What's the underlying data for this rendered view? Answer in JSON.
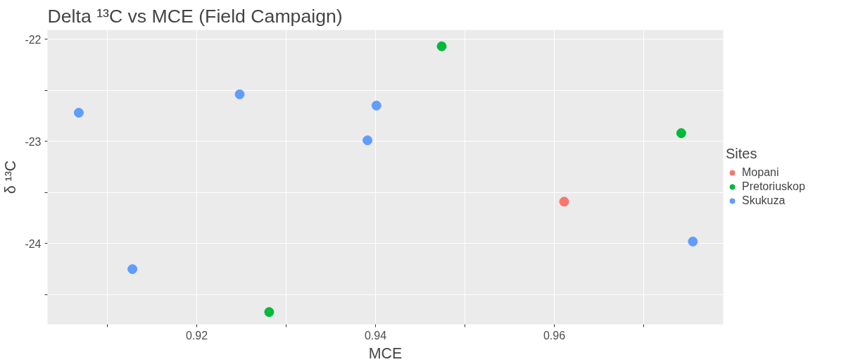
{
  "chart_data": {
    "type": "scatter",
    "title": "Delta ¹³C vs MCE (Field Campaign)",
    "xlabel": "MCE",
    "ylabel": "δ ¹³C",
    "legend_title": "Sites",
    "legend": "right",
    "grid": true,
    "marker": "circle",
    "xlim": [
      0.9033,
      0.9789
    ],
    "xticks": [
      {
        "value": 0.91,
        "label": null
      },
      0.92,
      {
        "value": 0.93,
        "label": null
      },
      0.94,
      {
        "value": 0.95,
        "label": null
      },
      0.96,
      {
        "value": 0.97,
        "label": null
      }
    ],
    "ylim": [
      -24.79,
      -21.91
    ],
    "yticks": [
      -22,
      {
        "value": -22.5,
        "label": null
      },
      -23,
      {
        "value": -23.5,
        "label": null
      },
      -24,
      {
        "value": -24.5,
        "label": null
      }
    ],
    "series": [
      {
        "name": "Mopani",
        "color": "#f8766d",
        "x": [
          0.9611
        ],
        "values": [
          -23.59
        ]
      },
      {
        "name": "Pretoriuskop",
        "color": "#00ba38",
        "x": [
          0.9281,
          0.9474,
          0.9742
        ],
        "values": [
          -24.67,
          -22.07,
          -22.92
        ]
      },
      {
        "name": "Skukuza",
        "color": "#619cff",
        "x": [
          0.9068,
          0.9128,
          0.9248,
          0.9391,
          0.9401,
          0.9755
        ],
        "values": [
          -22.72,
          -24.25,
          -22.54,
          -22.99,
          -22.65,
          -23.98
        ]
      }
    ]
  }
}
